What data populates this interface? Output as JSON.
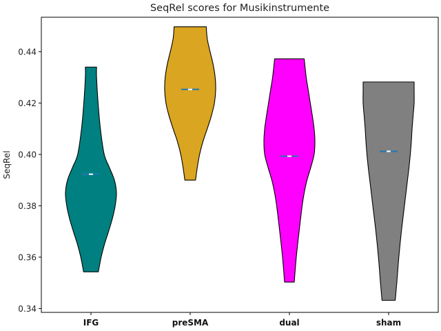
{
  "chart_data": {
    "type": "violin",
    "title": "SeqRel scores for Musikinstrumente",
    "xlabel": "",
    "ylabel": "SeqRel",
    "ylim": [
      0.3385,
      0.4534
    ],
    "yticks": [
      0.34,
      0.36,
      0.38,
      0.4,
      0.42,
      0.44
    ],
    "ytick_labels": [
      "0.34",
      "0.36",
      "0.38",
      "0.40",
      "0.42",
      "0.44"
    ],
    "grid": false,
    "legend": "none",
    "categories": [
      "IFG",
      "preSMA",
      "dual",
      "sham"
    ],
    "series": [
      {
        "category": "IFG",
        "color": "#008080",
        "min": 0.3543,
        "max": 0.434,
        "median": 0.3923,
        "mean": 0.3923,
        "profile": [
          [
            0.3543,
            0.29
          ],
          [
            0.36,
            0.4
          ],
          [
            0.365,
            0.53
          ],
          [
            0.37,
            0.69
          ],
          [
            0.375,
            0.84
          ],
          [
            0.38,
            0.95
          ],
          [
            0.385,
            1.0
          ],
          [
            0.39,
            0.92
          ],
          [
            0.395,
            0.72
          ],
          [
            0.4,
            0.52
          ],
          [
            0.41,
            0.37
          ],
          [
            0.42,
            0.28
          ],
          [
            0.43,
            0.22
          ],
          [
            0.434,
            0.22
          ]
        ]
      },
      {
        "category": "preSMA",
        "color": "#DAA520",
        "min": 0.39,
        "max": 0.4497,
        "median": 0.4253,
        "mean": 0.4253,
        "profile": [
          [
            0.39,
            0.21
          ],
          [
            0.395,
            0.28
          ],
          [
            0.4,
            0.37
          ],
          [
            0.405,
            0.5
          ],
          [
            0.41,
            0.67
          ],
          [
            0.415,
            0.83
          ],
          [
            0.42,
            0.95
          ],
          [
            0.425,
            1.0
          ],
          [
            0.43,
            0.98
          ],
          [
            0.435,
            0.9
          ],
          [
            0.44,
            0.78
          ],
          [
            0.445,
            0.67
          ],
          [
            0.4497,
            0.63
          ]
        ]
      },
      {
        "category": "dual",
        "color": "#FF00FF",
        "min": 0.3503,
        "max": 0.4372,
        "median": 0.3993,
        "mean": 0.3993,
        "profile": [
          [
            0.3503,
            0.19
          ],
          [
            0.36,
            0.27
          ],
          [
            0.37,
            0.38
          ],
          [
            0.38,
            0.5
          ],
          [
            0.385,
            0.58
          ],
          [
            0.39,
            0.69
          ],
          [
            0.395,
            0.84
          ],
          [
            0.4,
            0.97
          ],
          [
            0.405,
            1.0
          ],
          [
            0.41,
            0.97
          ],
          [
            0.415,
            0.9
          ],
          [
            0.42,
            0.82
          ],
          [
            0.425,
            0.74
          ],
          [
            0.43,
            0.66
          ],
          [
            0.4372,
            0.58
          ]
        ]
      },
      {
        "category": "sham",
        "color": "#808080",
        "min": 0.3432,
        "max": 0.4282,
        "median": 0.4012,
        "mean": 0.4012,
        "profile": [
          [
            0.3432,
            0.26
          ],
          [
            0.35,
            0.32
          ],
          [
            0.36,
            0.4
          ],
          [
            0.37,
            0.5
          ],
          [
            0.38,
            0.62
          ],
          [
            0.39,
            0.74
          ],
          [
            0.395,
            0.8
          ],
          [
            0.4,
            0.85
          ],
          [
            0.405,
            0.89
          ],
          [
            0.41,
            0.92
          ],
          [
            0.415,
            0.96
          ],
          [
            0.42,
            1.0
          ],
          [
            0.425,
            1.0
          ],
          [
            0.4282,
            1.0
          ]
        ]
      }
    ]
  }
}
